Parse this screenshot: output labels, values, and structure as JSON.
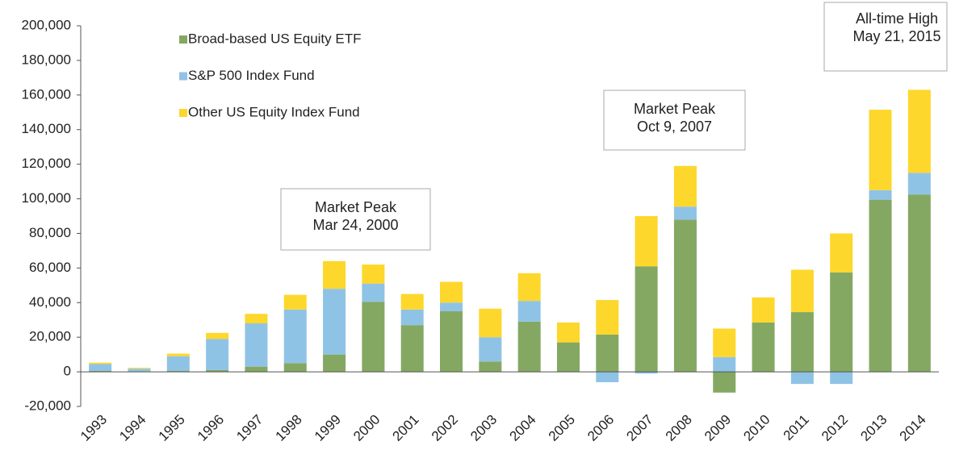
{
  "chart_data": {
    "type": "stacked_bar",
    "categories": [
      "1993",
      "1994",
      "1995",
      "1996",
      "1997",
      "1998",
      "1999",
      "2000",
      "2001",
      "2002",
      "2003",
      "2004",
      "2005",
      "2006",
      "2007",
      "2008",
      "2009",
      "2010",
      "2011",
      "2012",
      "2013",
      "2014"
    ],
    "series": [
      {
        "name": "Broad-based US Equity ETF",
        "color": "#84a862",
        "values": [
          500,
          300,
          500,
          1000,
          3000,
          5000,
          10000,
          40500,
          27000,
          35000,
          6000,
          29000,
          17000,
          21500,
          61000,
          88000,
          -12000,
          28500,
          34500,
          57500,
          99500,
          102500
        ]
      },
      {
        "name": "S&P 500 Index Fund",
        "color": "#8fc3e6",
        "values": [
          4000,
          1500,
          8500,
          18000,
          25000,
          31000,
          38000,
          10500,
          9000,
          5000,
          14000,
          12000,
          0,
          -6000,
          -1000,
          7500,
          8500,
          0,
          -7000,
          -7000,
          5500,
          12500
        ]
      },
      {
        "name": "Other US Equity Index Fund",
        "color": "#fdd72b",
        "values": [
          800,
          500,
          1500,
          3500,
          5500,
          8500,
          16000,
          11000,
          9000,
          12000,
          16500,
          16000,
          11500,
          20000,
          29000,
          23500,
          16500,
          14500,
          24500,
          22500,
          46500,
          48000
        ]
      }
    ],
    "ylim": [
      -20000,
      200000
    ],
    "yticks": [
      {
        "value": -20000,
        "label": "-20,000"
      },
      0,
      {
        "value": 20000,
        "label": "20,000"
      },
      {
        "value": 40000,
        "label": "40,000"
      },
      {
        "value": 60000,
        "label": "60,000"
      },
      {
        "value": 80000,
        "label": "80,000"
      },
      {
        "value": 100000,
        "label": "100,000"
      },
      {
        "value": 120000,
        "label": "120,000"
      },
      {
        "value": 140000,
        "label": "140,000"
      },
      {
        "value": 160000,
        "label": "160,000"
      },
      {
        "value": 180000,
        "label": "180,000"
      },
      {
        "value": 200000,
        "label": "200,000"
      }
    ],
    "annotations": [
      {
        "lines": [
          "Market Peak",
          "Mar 24, 2000"
        ]
      },
      {
        "lines": [
          "Market Peak",
          "Oct 9, 2007"
        ]
      },
      {
        "lines": [
          "All-time High",
          "May 21, 2015"
        ]
      }
    ]
  }
}
